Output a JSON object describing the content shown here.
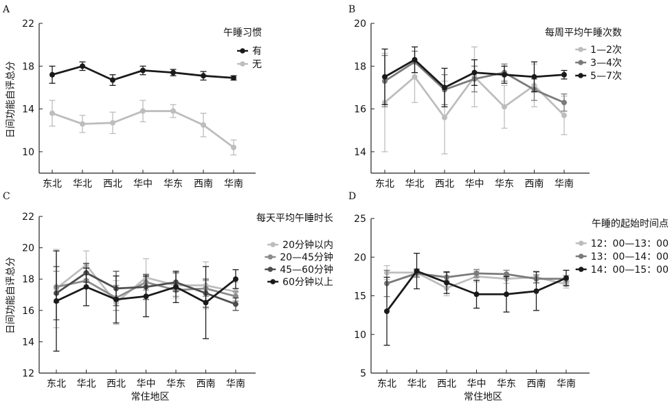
{
  "chart_data": [
    {
      "type": "line",
      "panel_label": "A",
      "categories": [
        "东北",
        "华北",
        "西北",
        "华中",
        "华东",
        "西南",
        "华南"
      ],
      "ylabel": "日间功能自评总分",
      "xlabel": "",
      "ylim": [
        8,
        22
      ],
      "yticks": [
        10,
        14,
        18,
        22
      ],
      "legend_title": "午睡习惯",
      "legend_position": "top-right",
      "grid": false,
      "series": [
        {
          "name": "有",
          "color": "#1a1a1a",
          "values": [
            17.2,
            18.0,
            16.7,
            17.6,
            17.4,
            17.1,
            16.9
          ],
          "errors": [
            0.8,
            0.4,
            0.5,
            0.4,
            0.3,
            0.4,
            0.2
          ]
        },
        {
          "name": "无",
          "color": "#bdbdbd",
          "values": [
            13.6,
            12.6,
            12.7,
            13.8,
            13.8,
            12.5,
            10.4
          ],
          "errors": [
            1.2,
            0.8,
            1.0,
            1.0,
            0.6,
            1.1,
            0.7
          ]
        }
      ]
    },
    {
      "type": "line",
      "panel_label": "B",
      "categories": [
        "东北",
        "华北",
        "西北",
        "华中",
        "华东",
        "西南",
        "华南"
      ],
      "ylabel": "",
      "xlabel": "",
      "ylim": [
        13,
        20
      ],
      "yticks": [
        14,
        16,
        18,
        20
      ],
      "legend_title": "每周平均午睡次数",
      "legend_position": "top-right",
      "grid": false,
      "series": [
        {
          "name": "1—2次",
          "color": "#bdbdbd",
          "values": [
            16.3,
            17.5,
            15.6,
            17.5,
            16.1,
            17.1,
            15.7
          ],
          "errors": [
            2.3,
            1.2,
            1.7,
            1.4,
            1.0,
            1.0,
            0.9
          ]
        },
        {
          "name": "3—4次",
          "color": "#7a7a7a",
          "values": [
            17.3,
            18.2,
            16.9,
            17.4,
            17.7,
            16.9,
            16.3
          ],
          "errors": [
            1.2,
            0.5,
            0.7,
            0.6,
            0.4,
            0.5,
            0.4
          ]
        },
        {
          "name": "5—7次",
          "color": "#1a1a1a",
          "values": [
            17.5,
            18.3,
            17.0,
            17.7,
            17.6,
            17.5,
            17.6
          ],
          "errors": [
            1.3,
            0.6,
            0.9,
            0.6,
            0.4,
            0.7,
            0.2
          ]
        }
      ]
    },
    {
      "type": "line",
      "panel_label": "C",
      "categories": [
        "东北",
        "华北",
        "西北",
        "华中",
        "华东",
        "西南",
        "华南"
      ],
      "ylabel": "日间功能自评总分",
      "xlabel": "常住地区",
      "ylim": [
        12,
        22
      ],
      "yticks": [
        12,
        14,
        16,
        18,
        20,
        22
      ],
      "legend_title": "每天平均午睡时长",
      "legend_position": "top-right",
      "grid": false,
      "series": [
        {
          "name": "20分钟以内",
          "color": "#bdbdbd",
          "values": [
            17.4,
            18.9,
            16.5,
            18.1,
            17.6,
            17.6,
            17.2
          ],
          "errors": [
            2.5,
            0.9,
            1.4,
            1.2,
            0.8,
            1.5,
            0.6
          ]
        },
        {
          "name": "20—45分钟",
          "color": "#8c8c8c",
          "values": [
            17.5,
            17.9,
            16.8,
            17.8,
            17.3,
            17.4,
            16.9
          ],
          "errors": [
            1.0,
            0.5,
            0.8,
            0.5,
            0.4,
            0.5,
            0.3
          ]
        },
        {
          "name": "45—60分钟",
          "color": "#4d4d4d",
          "values": [
            17.1,
            18.4,
            17.4,
            17.5,
            17.8,
            17.1,
            16.4
          ],
          "errors": [
            1.7,
            0.6,
            1.1,
            0.8,
            0.6,
            0.9,
            0.4
          ]
        },
        {
          "name": "60分钟以上",
          "color": "#1a1a1a",
          "values": [
            16.6,
            17.5,
            16.7,
            16.9,
            17.5,
            16.5,
            18.0
          ],
          "errors": [
            3.2,
            1.2,
            1.5,
            1.3,
            1.0,
            2.3,
            0.6
          ]
        }
      ]
    },
    {
      "type": "line",
      "panel_label": "D",
      "categories": [
        "东北",
        "华北",
        "西北",
        "华中",
        "华东",
        "西南",
        "华南"
      ],
      "ylabel": "",
      "xlabel": "常住地区",
      "ylim": [
        5,
        25
      ],
      "yticks": [
        5,
        10,
        15,
        20,
        25
      ],
      "legend_title": "午睡的起始时间点",
      "legend_position": "top-right",
      "grid": false,
      "series": [
        {
          "name": "12：00—13：00",
          "color": "#bdbdbd",
          "values": [
            18.0,
            18.0,
            16.0,
            17.5,
            17.2,
            17.4,
            16.5
          ],
          "errors": [
            0.9,
            0.5,
            1.0,
            0.7,
            0.6,
            0.8,
            0.5
          ]
        },
        {
          "name": "13：00—14：00",
          "color": "#7a7a7a",
          "values": [
            16.6,
            17.9,
            17.4,
            17.9,
            17.8,
            17.2,
            17.2
          ],
          "errors": [
            1.7,
            0.5,
            0.6,
            0.5,
            0.5,
            0.5,
            0.4
          ]
        },
        {
          "name": "14：00—15：00",
          "color": "#1a1a1a",
          "values": [
            13.0,
            18.2,
            16.7,
            15.2,
            15.2,
            15.6,
            17.3
          ],
          "errors": [
            4.4,
            2.3,
            1.4,
            1.8,
            2.3,
            2.5,
            1.0
          ]
        }
      ]
    }
  ]
}
